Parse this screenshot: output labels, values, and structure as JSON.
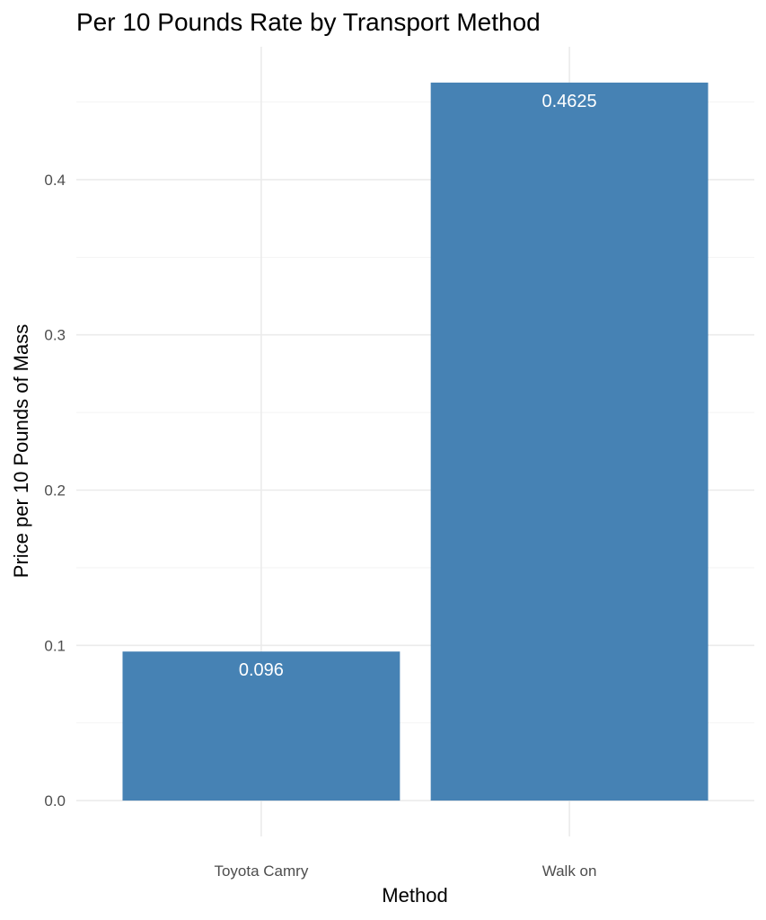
{
  "chart_data": {
    "type": "bar",
    "title": "Per 10 Pounds Rate by Transport Method",
    "xlabel": "Method",
    "ylabel": "Price per 10 Pounds of Mass",
    "categories": [
      "Toyota Camry",
      "Walk on"
    ],
    "values": [
      0.096,
      0.4625
    ],
    "data_labels": [
      "0.096",
      "0.4625"
    ],
    "y_ticks": [
      0.0,
      0.1,
      0.2,
      0.3,
      0.4
    ],
    "y_tick_labels": [
      "0.0",
      "0.1",
      "0.2",
      "0.3",
      "0.4"
    ],
    "ylim": [
      -0.0231,
      0.4856
    ],
    "grid": true,
    "legend": "none",
    "bar_color": "#4682B4"
  }
}
